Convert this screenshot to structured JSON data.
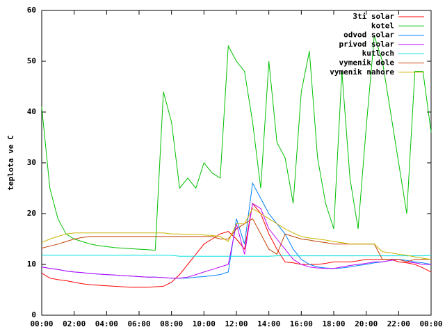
{
  "chart_data": {
    "type": "line",
    "y_label": "teplota ve C",
    "x": [
      0,
      0.5,
      1,
      1.5,
      2,
      2.5,
      3,
      3.5,
      4,
      4.5,
      5,
      5.5,
      6,
      6.5,
      7,
      7.5,
      8,
      8.5,
      9,
      9.5,
      10,
      10.5,
      11,
      11.5,
      12,
      12.5,
      13,
      13.5,
      14,
      14.5,
      15,
      15.5,
      16,
      16.5,
      17,
      17.5,
      18,
      18.5,
      19,
      19.5,
      20,
      20.5,
      21,
      21.5,
      22,
      22.5,
      23,
      23.5,
      24
    ],
    "xlim": [
      0,
      24
    ],
    "xticks": [
      {
        "value": 0,
        "label": "00:00"
      },
      {
        "value": 2,
        "label": "02:00"
      },
      {
        "value": 4,
        "label": "04:00"
      },
      {
        "value": 6,
        "label": "06:00"
      },
      {
        "value": 8,
        "label": "08:00"
      },
      {
        "value": 10,
        "label": "10:00"
      },
      {
        "value": 12,
        "label": "12:00"
      },
      {
        "value": 14,
        "label": "14:00"
      },
      {
        "value": 16,
        "label": "16:00"
      },
      {
        "value": 18,
        "label": "18:00"
      },
      {
        "value": 20,
        "label": "20:00"
      },
      {
        "value": 22,
        "label": "22:00"
      },
      {
        "value": 24,
        "label": "00:00"
      }
    ],
    "ylim": [
      0,
      60
    ],
    "yticks": [
      0,
      10,
      20,
      30,
      40,
      50,
      60
    ],
    "legend": "top-right",
    "series": [
      {
        "name": "3ti solar",
        "color": "#ff0000",
        "values": [
          8.3,
          7.3,
          7,
          6.8,
          6.5,
          6.2,
          6,
          5.9,
          5.8,
          5.7,
          5.6,
          5.5,
          5.5,
          5.5,
          5.6,
          5.7,
          6.5,
          8,
          10,
          12,
          14,
          15,
          16,
          16.5,
          15,
          13,
          22,
          20,
          16,
          13,
          10.5,
          10.3,
          10,
          10,
          10,
          10.2,
          10.5,
          10.5,
          10.5,
          10.7,
          11,
          11,
          11,
          11,
          10.5,
          10.3,
          10,
          9.3,
          8.5
        ]
      },
      {
        "name": "kotel",
        "color": "#00c000",
        "values": [
          41,
          25,
          19,
          16,
          15,
          14.5,
          14,
          13.7,
          13.5,
          13.3,
          13.2,
          13.1,
          13,
          12.9,
          12.8,
          44,
          38,
          25,
          27,
          25,
          30,
          28,
          27,
          53,
          50,
          48,
          38,
          25,
          50,
          34,
          31,
          22,
          44,
          52,
          31,
          22,
          17,
          48,
          27,
          17,
          37,
          55,
          50,
          40,
          30,
          20,
          48,
          48,
          36
        ]
      },
      {
        "name": "odvod solar",
        "color": "#0080ff",
        "values": [
          9.5,
          9.2,
          9,
          8.7,
          8.5,
          8.4,
          8.2,
          8.1,
          8,
          7.9,
          7.8,
          7.7,
          7.6,
          7.5,
          7.5,
          7.4,
          7.3,
          7.3,
          7.3,
          7.5,
          7.6,
          7.8,
          8,
          8.5,
          19,
          14,
          26,
          23,
          20,
          18,
          16,
          13,
          11,
          10,
          9.5,
          9.3,
          9.2,
          9.3,
          9.5,
          9.8,
          10,
          10.3,
          10.5,
          10.8,
          11,
          10.8,
          10.5,
          10.3,
          10
        ]
      },
      {
        "name": "privod solar",
        "color": "#c000ff",
        "values": [
          9.5,
          9.2,
          9,
          8.7,
          8.5,
          8.4,
          8.2,
          8.1,
          8,
          7.9,
          7.8,
          7.7,
          7.6,
          7.5,
          7.5,
          7.4,
          7.3,
          7.3,
          7.5,
          8,
          8.5,
          9,
          9.5,
          10,
          18,
          12,
          22,
          21,
          17,
          15,
          13,
          11,
          10,
          9.5,
          9.3,
          9.2,
          9.2,
          9.5,
          9.8,
          10,
          10.2,
          10.5,
          10.5,
          10.8,
          11,
          10.5,
          10.3,
          10,
          10
        ]
      },
      {
        "name": "kutloch",
        "color": "#00e0e0",
        "values": [
          11.8,
          11.8,
          11.8,
          11.8,
          11.8,
          11.8,
          11.8,
          11.8,
          11.8,
          11.8,
          11.8,
          11.8,
          11.8,
          11.8,
          11.8,
          11.8,
          11.8,
          11.6,
          11.6,
          11.6,
          11.6,
          11.6,
          11.6,
          11.6,
          11.6,
          11.6,
          11.6,
          11.6,
          11.6,
          11.7,
          11.7,
          11.7,
          11.7,
          11.7,
          11.7,
          11.7,
          11.7,
          11.7,
          11.7,
          11.7,
          11.7,
          11.7,
          11.7,
          11.7,
          11.7,
          11.7,
          11.7,
          11.7,
          11.8
        ]
      },
      {
        "name": "vymenik dole",
        "color": "#c04000",
        "values": [
          13.2,
          13.6,
          14,
          14.5,
          15,
          15.3,
          15.5,
          15.5,
          15.5,
          15.5,
          15.5,
          15.5,
          15.5,
          15.5,
          15.5,
          15.5,
          15.5,
          15.5,
          15.5,
          15.5,
          15.5,
          15.5,
          15,
          15,
          17,
          18,
          19,
          16,
          13,
          12,
          16,
          15.5,
          15,
          14.8,
          14.5,
          14.3,
          14,
          14,
          14,
          14,
          14,
          14,
          11,
          11,
          11,
          10.5,
          11,
          11,
          11
        ]
      },
      {
        "name": "vymenik nahore",
        "color": "#c8b400",
        "values": [
          14.3,
          15,
          15.5,
          16,
          16.2,
          16.2,
          16.2,
          16.2,
          16.2,
          16.2,
          16.2,
          16.2,
          16.2,
          16.2,
          16.2,
          16.2,
          16,
          16,
          15.9,
          15.9,
          15.8,
          15.7,
          15.5,
          14.5,
          18,
          18,
          21,
          20,
          19,
          18,
          17,
          16.2,
          15.5,
          15.2,
          15,
          14.8,
          14.5,
          14.3,
          14,
          14,
          14,
          14,
          12.5,
          12.3,
          12,
          11.8,
          11.5,
          11.2,
          11
        ]
      }
    ]
  }
}
